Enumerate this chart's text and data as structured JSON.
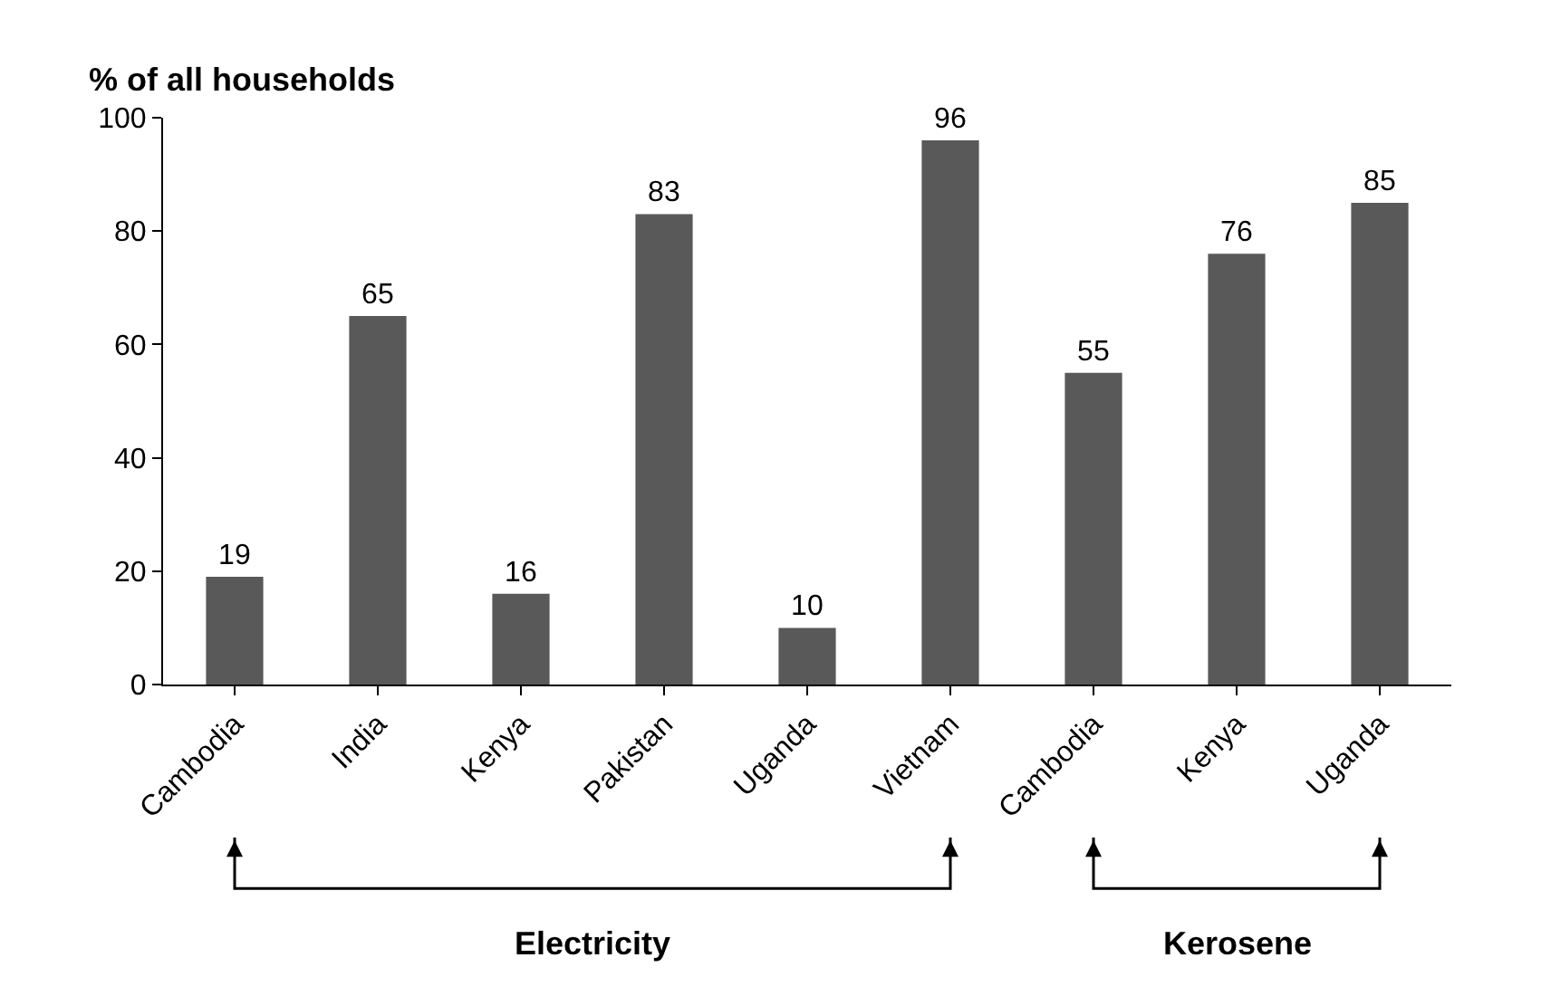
{
  "chart_data": {
    "type": "bar",
    "title": "% of all households",
    "categories": [
      "Cambodia",
      "India",
      "Kenya",
      "Pakistan",
      "Uganda",
      "Vietnam",
      "Cambodia",
      "Kenya",
      "Uganda"
    ],
    "values": [
      19,
      65,
      16,
      83,
      10,
      96,
      55,
      76,
      85
    ],
    "color": "#595959",
    "ylim": [
      0,
      100
    ],
    "yticks": [
      0,
      20,
      40,
      60,
      80,
      100
    ],
    "data_labels": true,
    "annotations": [
      "Electricity",
      "Kerosene"
    ]
  }
}
